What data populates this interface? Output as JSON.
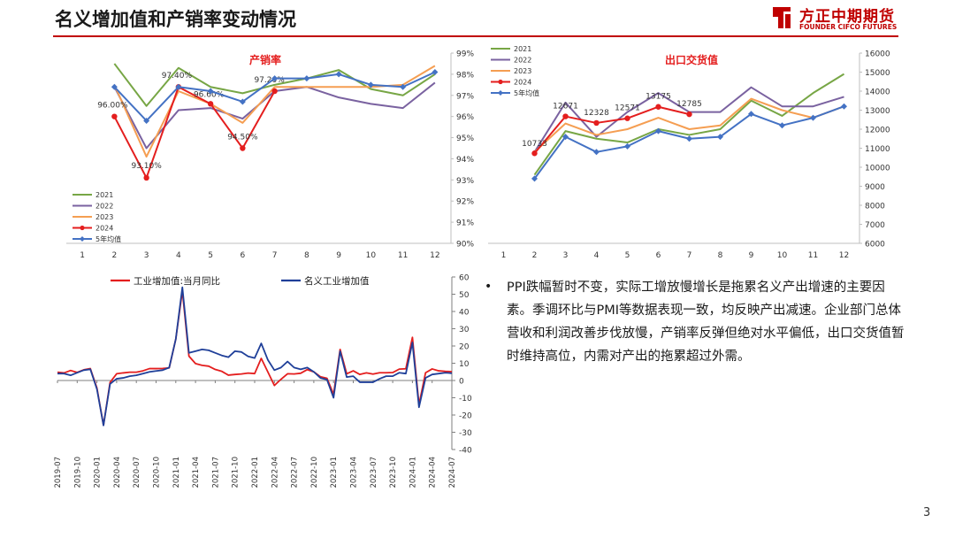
{
  "page": {
    "title": "名义增加值和产销率变动情况",
    "number": "3"
  },
  "logo": {
    "cn": "方正中期期货",
    "en": "FOUNDER CIFCO FUTURES"
  },
  "colors": {
    "s2021": "#77a645",
    "s2022": "#7a62a0",
    "s2023": "#f59e52",
    "s2024": "#e41e1e",
    "avg": "#4472c4",
    "ind": "#e41e1e",
    "nom": "#1f3f99",
    "title_red": "#c00000"
  },
  "text": {
    "bullet": "PPI跌幅暂时不变，实际工增放慢增长是拖累名义产出增速的主要因素。季调环比与PMI等数据表现一致，均反映产出减速。企业部门总体营收和利润改善步伐放慢，产销率反弹但绝对水平偏低，出口交货值暂时维持高位，内需对产出的拖累超过外需。"
  },
  "chart_data": [
    {
      "id": "sales-rate",
      "type": "line",
      "title": "产销率",
      "categories": [
        "1",
        "2",
        "3",
        "4",
        "5",
        "6",
        "7",
        "8",
        "9",
        "10",
        "11",
        "12"
      ],
      "y_axis": {
        "position": "right",
        "min": 90,
        "max": 99,
        "step": 1,
        "ticks": [
          "90%",
          "91%",
          "92%",
          "93%",
          "94%",
          "95%",
          "96%",
          "97%",
          "98%",
          "99%"
        ]
      },
      "legend": {
        "placement": "bottom-left"
      },
      "series": [
        {
          "name": "2021",
          "color": "#77a645",
          "marker": false,
          "values": [
            null,
            98.5,
            96.5,
            98.3,
            97.4,
            97.1,
            97.5,
            97.8,
            98.2,
            97.3,
            97.0,
            98.0
          ]
        },
        {
          "name": "2022",
          "color": "#7a62a0",
          "marker": false,
          "values": [
            null,
            97.4,
            94.5,
            96.3,
            96.4,
            95.9,
            97.2,
            97.4,
            96.9,
            96.6,
            96.4,
            97.6
          ]
        },
        {
          "name": "2023",
          "color": "#f59e52",
          "marker": false,
          "values": [
            null,
            97.5,
            94.1,
            97.2,
            96.6,
            95.7,
            97.4,
            97.4,
            97.4,
            97.4,
            97.5,
            98.4
          ]
        },
        {
          "name": "2024",
          "color": "#e41e1e",
          "marker": "dot",
          "values": [
            null,
            96.0,
            93.1,
            97.4,
            96.6,
            94.5,
            97.2,
            null,
            null,
            null,
            null,
            null
          ],
          "labels": [
            "",
            "96.00%",
            "93.10%",
            "97.40%",
            "96.60%",
            "94.50%",
            "97.20%",
            "",
            "",
            "",
            "",
            ""
          ]
        },
        {
          "name": "5年均值",
          "color": "#4472c4",
          "marker": "diamond",
          "values": [
            null,
            97.4,
            95.8,
            97.4,
            97.2,
            96.7,
            97.8,
            97.8,
            98.0,
            97.5,
            97.4,
            98.1
          ]
        }
      ]
    },
    {
      "id": "export-value",
      "type": "line",
      "title": "出口交货值",
      "categories": [
        "1",
        "2",
        "3",
        "4",
        "5",
        "6",
        "7",
        "8",
        "9",
        "10",
        "11",
        "12"
      ],
      "y_axis": {
        "position": "right",
        "min": 6000,
        "max": 16000,
        "step": 1000,
        "ticks": [
          "6000",
          "7000",
          "8000",
          "9000",
          "10000",
          "11000",
          "12000",
          "13000",
          "14000",
          "15000",
          "16000"
        ]
      },
      "legend": {
        "placement": "top-left"
      },
      "series": [
        {
          "name": "2021",
          "color": "#77a645",
          "marker": false,
          "values": [
            null,
            9600,
            11900,
            11500,
            11300,
            12000,
            11700,
            12000,
            13500,
            12700,
            13900,
            14900
          ]
        },
        {
          "name": "2022",
          "color": "#7a62a0",
          "marker": false,
          "values": [
            null,
            10800,
            13400,
            11600,
            12900,
            13900,
            12900,
            12900,
            14200,
            13200,
            13200,
            13700
          ]
        },
        {
          "name": "2023",
          "color": "#f59e52",
          "marker": false,
          "values": [
            null,
            10800,
            12300,
            11700,
            12000,
            12600,
            12000,
            12200,
            13600,
            13000,
            12600,
            13200
          ]
        },
        {
          "name": "2024",
          "color": "#e41e1e",
          "marker": "dot",
          "values": [
            null,
            10733,
            12671,
            12328,
            12571,
            13175,
            12785,
            null,
            null,
            null,
            null,
            null
          ],
          "labels": [
            "",
            "10733",
            "12671",
            "12328",
            "12571",
            "13175",
            "12785",
            "",
            "",
            "",
            "",
            ""
          ]
        },
        {
          "name": "5年均值",
          "color": "#4472c4",
          "marker": "diamond",
          "values": [
            null,
            9400,
            11600,
            10800,
            11100,
            11900,
            11500,
            11600,
            12800,
            12200,
            12600,
            13200
          ]
        }
      ]
    },
    {
      "id": "industrial-value",
      "type": "line",
      "categories": [
        "2019-07",
        "2019-10",
        "2020-01",
        "2020-04",
        "2020-07",
        "2020-10",
        "2021-01",
        "2021-04",
        "2021-07",
        "2021-10",
        "2022-01",
        "2022-04",
        "2022-07",
        "2022-10",
        "2023-01",
        "2023-04",
        "2023-07",
        "2023-10",
        "2024-01",
        "2024-04",
        "2024-07"
      ],
      "x": [
        "2019-07",
        "2019-08",
        "2019-09",
        "2019-10",
        "2019-11",
        "2019-12",
        "2020-01",
        "2020-02",
        "2020-03",
        "2020-04",
        "2020-05",
        "2020-06",
        "2020-07",
        "2020-08",
        "2020-09",
        "2020-10",
        "2020-11",
        "2020-12",
        "2021-01",
        "2021-02",
        "2021-03",
        "2021-04",
        "2021-05",
        "2021-06",
        "2021-07",
        "2021-08",
        "2021-09",
        "2021-10",
        "2021-11",
        "2021-12",
        "2022-01",
        "2022-02",
        "2022-03",
        "2022-04",
        "2022-05",
        "2022-06",
        "2022-07",
        "2022-08",
        "2022-09",
        "2022-10",
        "2022-11",
        "2022-12",
        "2023-01",
        "2023-02",
        "2023-03",
        "2023-04",
        "2023-05",
        "2023-06",
        "2023-07",
        "2023-08",
        "2023-09",
        "2023-10",
        "2023-11",
        "2023-12",
        "2024-01",
        "2024-02",
        "2024-03",
        "2024-04",
        "2024-05",
        "2024-06",
        "2024-07"
      ],
      "y_axis": {
        "position": "right",
        "min": -40,
        "max": 60,
        "step": 10,
        "ticks": [
          "-40",
          "-30",
          "-20",
          "-10",
          "0",
          "10",
          "20",
          "30",
          "40",
          "50",
          "60"
        ]
      },
      "legend": {
        "placement": "top"
      },
      "series": [
        {
          "name": "工业增加值:当月同比",
          "color": "#e41e1e",
          "values": [
            4.8,
            4.4,
            5.8,
            4.7,
            6.2,
            6.9,
            -4.3,
            -25.9,
            -1.1,
            3.9,
            4.4,
            4.8,
            4.8,
            5.6,
            6.9,
            6.9,
            7.0,
            7.3,
            24.0,
            52.0,
            14.1,
            9.8,
            8.8,
            8.3,
            6.4,
            5.3,
            3.1,
            3.5,
            3.8,
            4.3,
            4.0,
            12.8,
            5.0,
            -2.9,
            0.7,
            3.9,
            3.8,
            4.2,
            6.3,
            5.0,
            2.2,
            1.3,
            -8.0,
            18.0,
            3.9,
            5.6,
            3.5,
            4.4,
            3.7,
            4.5,
            4.5,
            4.6,
            6.6,
            6.8,
            25.0,
            -14.0,
            4.5,
            6.7,
            5.6,
            5.3,
            5.1
          ]
        },
        {
          "name": "名义工业增加值",
          "color": "#1f3f99",
          "values": [
            4.0,
            4.0,
            3.0,
            4.5,
            6.0,
            6.5,
            -5.0,
            -26.0,
            -2.0,
            1.0,
            1.5,
            2.5,
            3.0,
            4.0,
            5.0,
            5.5,
            6.0,
            7.5,
            24.0,
            54.0,
            16.0,
            17.0,
            18.0,
            17.5,
            16.0,
            14.5,
            13.5,
            17.0,
            16.5,
            14.0,
            13.0,
            21.5,
            12.0,
            6.0,
            7.5,
            11.0,
            7.5,
            6.5,
            7.5,
            5.0,
            1.5,
            0.5,
            -10.0,
            17.0,
            2.0,
            2.5,
            -1.0,
            -1.0,
            -1.0,
            1.0,
            2.5,
            2.5,
            4.5,
            4.0,
            22.0,
            -15.5,
            1.5,
            3.5,
            4.0,
            4.5,
            4.2
          ]
        }
      ]
    }
  ]
}
